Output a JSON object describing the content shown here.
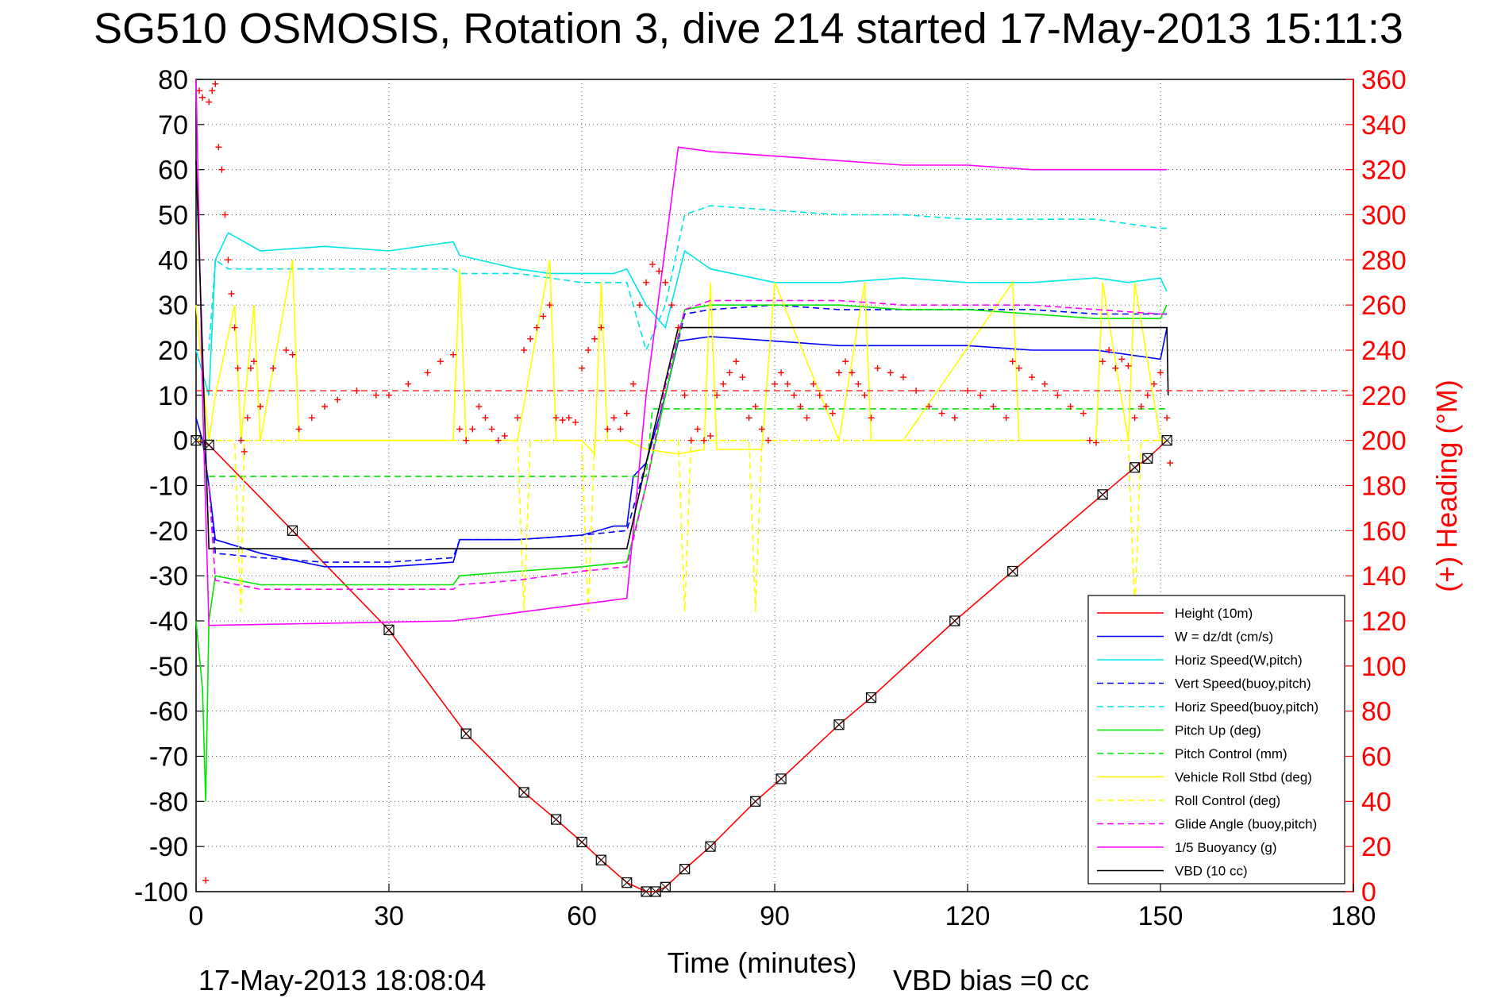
{
  "chart_data": {
    "type": "line",
    "title": "SG510 OSMOSIS, Rotation 3, dive 214 started 17-May-2013 15:11:3",
    "xlabel": "Time (minutes)",
    "ylabel": "",
    "y2label": "(+) Heading (°M)",
    "xlim": [
      0,
      180
    ],
    "ylim": [
      -100,
      80
    ],
    "y2lim": [
      0,
      360
    ],
    "x_ticks": [
      0,
      30,
      60,
      90,
      120,
      150,
      180
    ],
    "y_ticks": [
      80,
      70,
      60,
      50,
      40,
      30,
      20,
      10,
      0,
      -10,
      -20,
      -30,
      -40,
      -50,
      -60,
      -70,
      -80,
      -90,
      -100
    ],
    "y2_ticks": [
      360,
      340,
      320,
      300,
      280,
      260,
      240,
      220,
      200,
      180,
      160,
      140,
      120,
      100,
      80,
      60,
      40,
      20,
      0
    ],
    "grid": true,
    "legend_position": "bottom-right",
    "footer_left": "17-May-2013 18:08:04",
    "footer_right": "VBD bias =0 cc",
    "series": [
      {
        "name": "Height (10m)",
        "color": "#ff0000",
        "style": "solid",
        "x": [
          0,
          2,
          15,
          30,
          42,
          51,
          56,
          60,
          63,
          67,
          70,
          71.5,
          73,
          76,
          80,
          87,
          91,
          100,
          105,
          118,
          127,
          141,
          146,
          148,
          151
        ],
        "y": [
          0,
          -1,
          -20,
          -42,
          -65,
          -78,
          -84,
          -89,
          -93,
          -98,
          -100,
          -100,
          -99,
          -95,
          -90,
          -80,
          -75,
          -63,
          -57,
          -40,
          -29,
          -12,
          -6,
          -4,
          0
        ]
      },
      {
        "name": "W = dz/dt (cm/s)",
        "color": "#0000ff",
        "style": "solid",
        "x": [
          0,
          1,
          2,
          3,
          10,
          20,
          30,
          40,
          41,
          50,
          60,
          65,
          67,
          68,
          70,
          73,
          75,
          80,
          90,
          100,
          110,
          120,
          130,
          140,
          145,
          150,
          151
        ],
        "y": [
          5,
          0,
          -10,
          -22,
          -25,
          -28,
          -28,
          -27,
          -22,
          -22,
          -21,
          -19,
          -19,
          -8,
          -5,
          10,
          22,
          23,
          22,
          21,
          21,
          21,
          20,
          20,
          19,
          18,
          25
        ]
      },
      {
        "name": "Horiz Speed(W,pitch)",
        "color": "#00e5e5",
        "style": "solid",
        "x": [
          0,
          1,
          2,
          3,
          5,
          10,
          20,
          30,
          40,
          41,
          50,
          55,
          60,
          65,
          67,
          70,
          73,
          76,
          80,
          90,
          100,
          110,
          120,
          130,
          140,
          145,
          150,
          151
        ],
        "y": [
          20,
          15,
          10,
          40,
          46,
          42,
          43,
          42,
          44,
          41,
          38,
          37,
          37,
          37,
          38,
          30,
          25,
          42,
          38,
          35,
          35,
          36,
          35,
          35,
          36,
          35,
          36,
          33
        ]
      },
      {
        "name": "Vert Speed(buoy,pitch)",
        "color": "#0000ff",
        "style": "dashed",
        "x": [
          2,
          3,
          10,
          20,
          30,
          40,
          41,
          50,
          60,
          67,
          70,
          73,
          76,
          80,
          90,
          100,
          110,
          120,
          130,
          140,
          150,
          151
        ],
        "y": [
          -10,
          -25,
          -26,
          -27,
          -27,
          -26,
          -22,
          -22,
          -21,
          -20,
          -5,
          10,
          28,
          29,
          30,
          29,
          29,
          29,
          29,
          28,
          28,
          28
        ]
      },
      {
        "name": "Horiz Speed(buoy,pitch)",
        "color": "#00e5e5",
        "style": "dashed",
        "x": [
          2,
          3,
          5,
          10,
          20,
          30,
          40,
          41,
          50,
          60,
          67,
          70,
          73,
          76,
          80,
          90,
          100,
          110,
          120,
          130,
          140,
          150,
          151
        ],
        "y": [
          20,
          40,
          38,
          38,
          38,
          38,
          38,
          37,
          37,
          35,
          35,
          20,
          30,
          50,
          52,
          51,
          50,
          50,
          49,
          49,
          49,
          47,
          47
        ]
      },
      {
        "name": "Pitch Up (deg)",
        "color": "#00e600",
        "style": "solid",
        "x": [
          0,
          1,
          1.5,
          2,
          3,
          10,
          20,
          30,
          40,
          41,
          50,
          60,
          67,
          70,
          73,
          76,
          80,
          90,
          100,
          110,
          120,
          130,
          140,
          150,
          151
        ],
        "y": [
          -40,
          -55,
          -80,
          -40,
          -30,
          -32,
          -32,
          -32,
          -32,
          -30,
          -29,
          -28,
          -27,
          -10,
          10,
          29,
          30,
          30,
          30,
          29,
          29,
          28,
          27,
          27,
          30
        ]
      },
      {
        "name": "Pitch Control (mm)",
        "color": "#00e600",
        "style": "dashed",
        "x": [
          2,
          70,
          71,
          151
        ],
        "y": [
          -8,
          -8,
          7,
          7
        ]
      },
      {
        "name": "Vehicle Roll Stbd (deg)",
        "color": "#ffff00",
        "style": "solid",
        "x": [
          0,
          2,
          3,
          6,
          7,
          9,
          10,
          15,
          16,
          20,
          40,
          41,
          42,
          50,
          55,
          56,
          60,
          62,
          63,
          64,
          67,
          70,
          75,
          79,
          80,
          81,
          88,
          90,
          100,
          104,
          105,
          110,
          127,
          128,
          140,
          141,
          145,
          146,
          150,
          151
        ],
        "y": [
          30,
          0,
          10,
          30,
          0,
          30,
          0,
          40,
          0,
          0,
          0,
          38,
          0,
          0,
          40,
          0,
          0,
          -3,
          35,
          0,
          0,
          -2,
          -3,
          -2,
          35,
          -2,
          -2,
          35,
          0,
          35,
          0,
          0,
          35,
          0,
          0,
          35,
          0,
          35,
          0,
          0
        ]
      },
      {
        "name": "Roll Control (deg)",
        "color": "#ffff00",
        "style": "dashed",
        "x": [
          0,
          2,
          6,
          7,
          7.5,
          10,
          50,
          51,
          52,
          60,
          61,
          62,
          75,
          76,
          77,
          86,
          87,
          88,
          145,
          146,
          147,
          151
        ],
        "y": [
          0,
          0,
          0,
          -38,
          0,
          0,
          0,
          -38,
          0,
          0,
          -38,
          0,
          0,
          -38,
          0,
          0,
          -38,
          0,
          0,
          -38,
          0,
          0
        ]
      },
      {
        "name": "Glide Angle (buoy,pitch)",
        "color": "#ff00ff",
        "style": "dashed",
        "x": [
          2,
          3,
          10,
          20,
          30,
          40,
          41,
          50,
          60,
          67,
          70,
          73,
          76,
          80,
          90,
          100,
          110,
          120,
          130,
          140,
          150,
          151
        ],
        "y": [
          -10,
          -31,
          -33,
          -33,
          -33,
          -33,
          -32,
          -31,
          -29,
          -28,
          -10,
          12,
          29,
          31,
          31,
          31,
          30,
          30,
          30,
          29,
          28,
          28
        ]
      },
      {
        "name": "1/5 Buoyancy (g)",
        "color": "#ff00ff",
        "style": "solid",
        "x": [
          0,
          1,
          2,
          40,
          67,
          70,
          75,
          80,
          90,
          100,
          110,
          120,
          130,
          140,
          150,
          151
        ],
        "y": [
          80,
          10,
          -41,
          -40,
          -35,
          10,
          65,
          64,
          63,
          62,
          61,
          61,
          60,
          60,
          60,
          60
        ]
      },
      {
        "name": "VBD (10 cc)",
        "color": "#000000",
        "style": "solid",
        "x": [
          0,
          1,
          2,
          15,
          30,
          67,
          70,
          75,
          100,
          151,
          151.2
        ],
        "y": [
          62,
          20,
          -24,
          -24,
          -24,
          -24,
          -5,
          25,
          25,
          25,
          10
        ]
      }
    ],
    "heading": {
      "name": "(+) Heading",
      "color": "#ff0000",
      "axis": "right",
      "reference_y": 222,
      "x": [
        0.5,
        1,
        1.5,
        2,
        2.5,
        3,
        3.5,
        4,
        4.5,
        5,
        5.5,
        6,
        6.5,
        7,
        7.5,
        8,
        8.5,
        9,
        10,
        12,
        14,
        15,
        16,
        18,
        20,
        22,
        25,
        28,
        30,
        33,
        36,
        38,
        40,
        41,
        42,
        43,
        44,
        45,
        46,
        47,
        48,
        50,
        51,
        52,
        53,
        54,
        55,
        56,
        57,
        58,
        59,
        60,
        61,
        62,
        63,
        64,
        65,
        66,
        67,
        68,
        69,
        70,
        71,
        72,
        73,
        74,
        75,
        76,
        77,
        78,
        79,
        80,
        81,
        82,
        83,
        84,
        85,
        86,
        87,
        88,
        89,
        90,
        91,
        92,
        93,
        94,
        95,
        96,
        97,
        98,
        99,
        100,
        101,
        102,
        103,
        104,
        105,
        106,
        108,
        110,
        112,
        114,
        116,
        118,
        120,
        122,
        124,
        126,
        127,
        128,
        130,
        132,
        134,
        136,
        138,
        139,
        140,
        141,
        142,
        143,
        144,
        145,
        146,
        147,
        148,
        149,
        150,
        151,
        151.5
      ],
      "y": [
        355,
        352,
        5,
        350,
        355,
        358,
        330,
        320,
        300,
        280,
        265,
        250,
        232,
        200,
        195,
        210,
        232,
        235,
        215,
        232,
        240,
        238,
        205,
        210,
        215,
        218,
        222,
        220,
        220,
        225,
        230,
        235,
        238,
        205,
        200,
        205,
        215,
        210,
        205,
        200,
        202,
        210,
        240,
        245,
        250,
        255,
        260,
        210,
        209,
        210,
        208,
        232,
        240,
        245,
        250,
        205,
        210,
        205,
        212,
        225,
        260,
        270,
        278,
        275,
        270,
        260,
        250,
        220,
        200,
        205,
        200,
        202,
        220,
        225,
        230,
        235,
        228,
        210,
        215,
        205,
        200,
        225,
        230,
        225,
        220,
        215,
        210,
        225,
        220,
        215,
        212,
        230,
        235,
        230,
        225,
        220,
        210,
        232,
        230,
        228,
        222,
        215,
        212,
        210,
        222,
        220,
        215,
        210,
        235,
        232,
        228,
        225,
        220,
        215,
        212,
        200,
        199,
        235,
        240,
        232,
        236,
        233,
        210,
        215,
        220,
        225,
        230,
        210,
        190
      ]
    }
  }
}
